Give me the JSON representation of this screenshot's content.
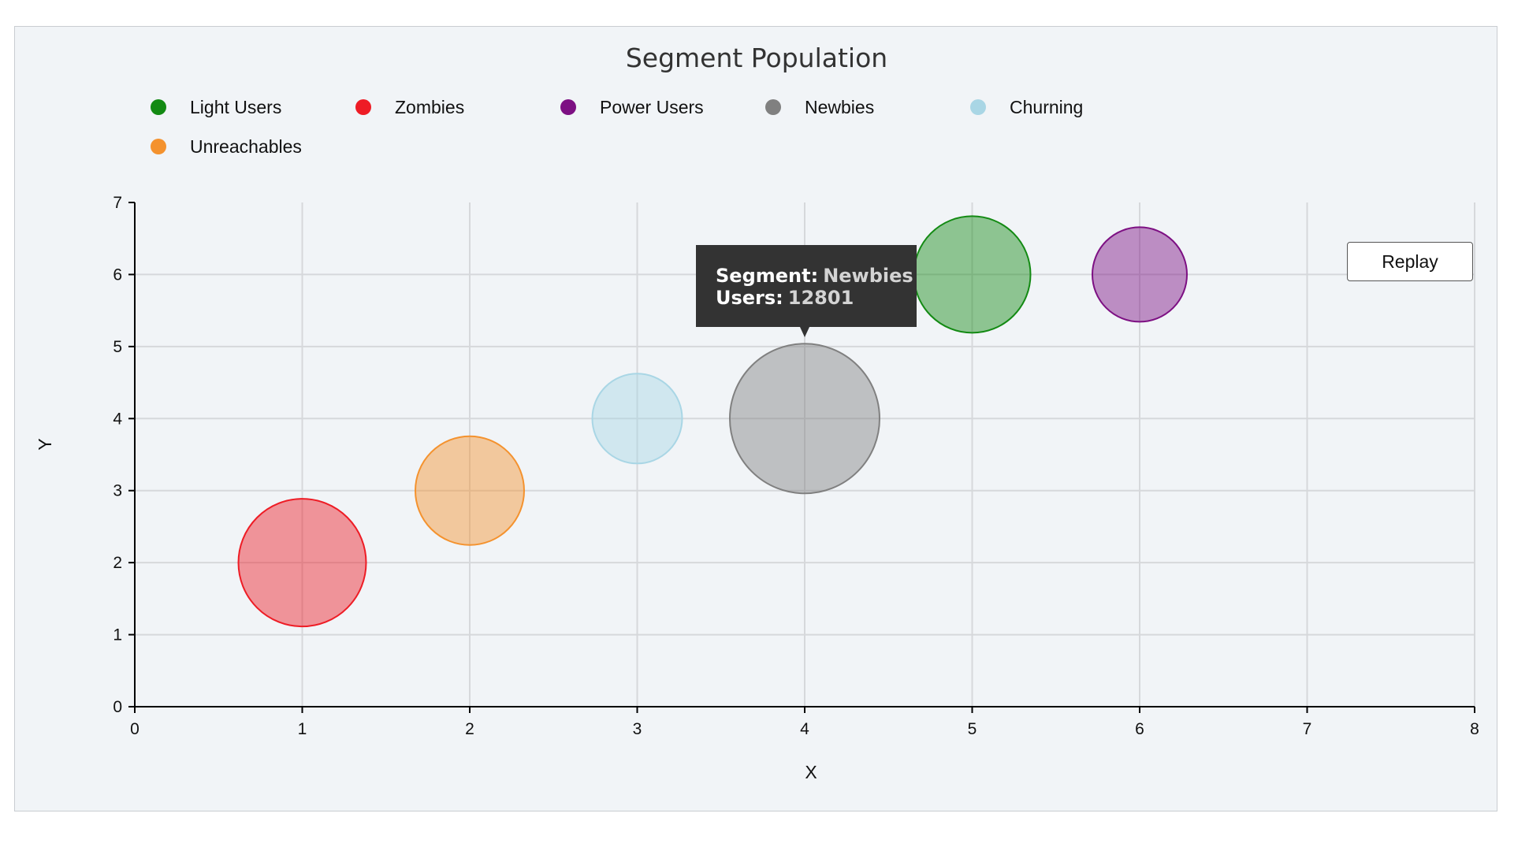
{
  "chart_data": {
    "type": "scatter",
    "title": "Segment Population",
    "xlabel": "X",
    "ylabel": "Y",
    "xlim": [
      0,
      8
    ],
    "ylim": [
      0,
      7
    ],
    "x_ticks": [
      "0",
      "1",
      "2",
      "3",
      "4",
      "5",
      "6",
      "7",
      "8"
    ],
    "y_ticks": [
      "0",
      "1",
      "2",
      "3",
      "4",
      "5",
      "6",
      "7"
    ],
    "grid": true,
    "legend_position": "top-left",
    "series": [
      {
        "name": "Light Users",
        "x": 5,
        "y": 6,
        "color": "#138a13"
      },
      {
        "name": "Zombies",
        "x": 1,
        "y": 2,
        "color": "#ee1c25"
      },
      {
        "name": "Power Users",
        "x": 6,
        "y": 6,
        "color": "#7d1083"
      },
      {
        "name": "Newbies",
        "x": 4,
        "y": 4,
        "users": 12801,
        "color": "#808080"
      },
      {
        "name": "Churning",
        "x": 3,
        "y": 4,
        "color": "#a9d6e5"
      },
      {
        "name": "Unreachables",
        "x": 2,
        "y": 3,
        "color": "#f4922e"
      }
    ]
  },
  "tooltip": {
    "segment_label": "Segment:",
    "segment_value": "Newbies",
    "users_label": "Users:",
    "users_value": "12801"
  },
  "controls": {
    "replay_label": "Replay"
  }
}
